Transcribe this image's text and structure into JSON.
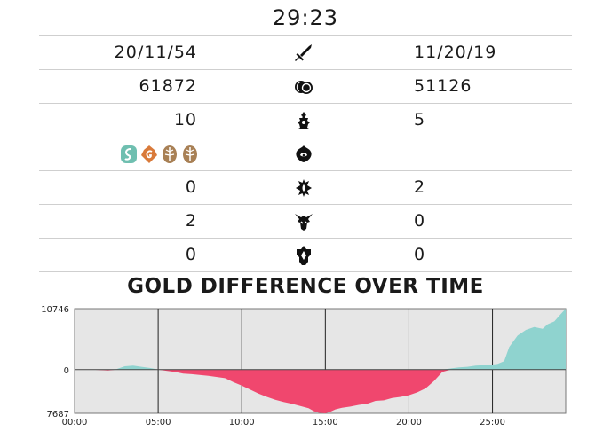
{
  "game_time": "29:23",
  "rows": [
    {
      "left": "20/11/54",
      "right": "11/20/19",
      "icon": "sword-icon"
    },
    {
      "left": "61872",
      "right": "51126",
      "icon": "gold-coins-icon"
    },
    {
      "left": "10",
      "right": "5",
      "icon": "tower-icon"
    },
    {
      "left": "",
      "right": "",
      "icon": "dragon-icon"
    },
    {
      "left": "0",
      "right": "2",
      "icon": "rift-herald-icon"
    },
    {
      "left": "2",
      "right": "0",
      "icon": "baron-icon"
    },
    {
      "left": "0",
      "right": "0",
      "icon": "inhibitor-icon"
    }
  ],
  "dragons_left": [
    {
      "icon": "ocean-dragon-icon",
      "color": "#6fbfb0"
    },
    {
      "icon": "infernal-dragon-icon",
      "color": "#d97a3a"
    },
    {
      "icon": "mountain-dragon-icon",
      "color": "#a88055"
    },
    {
      "icon": "mountain-dragon-icon",
      "color": "#a88055"
    }
  ],
  "colors": {
    "positive": "#8fd3cf",
    "negative": "#f0476e",
    "plot_background": "#e6e6e6"
  },
  "chart_data": {
    "type": "area",
    "title": "GOLD DIFFERENCE OVER TIME",
    "xlabel": "",
    "ylabel": "",
    "x_ticks": [
      "00:00",
      "05:00",
      "10:00",
      "15:00",
      "20:00",
      "25:00"
    ],
    "y_tick_labels": [
      "10746",
      "0",
      "7687"
    ],
    "ylim": [
      -7687,
      10746
    ],
    "xlim_minutes": [
      0,
      29.38
    ],
    "grid": "vertical",
    "x_minutes": [
      0,
      1,
      2,
      2.5,
      3,
      3.5,
      4,
      4.5,
      5,
      5.5,
      6,
      6.5,
      7,
      8,
      9,
      9.5,
      10,
      10.5,
      11,
      11.5,
      12,
      12.5,
      13,
      13.5,
      14,
      14.3,
      14.6,
      15,
      15.3,
      15.6,
      16,
      16.5,
      17,
      17.5,
      18,
      18.5,
      19,
      19.5,
      20,
      20.5,
      21,
      21.5,
      22,
      22.5,
      23,
      23.5,
      24,
      24.5,
      25,
      25.3,
      25.7,
      26,
      26.5,
      27,
      27.5,
      28,
      28.3,
      28.7,
      29,
      29.38
    ],
    "gold_diff": [
      0,
      50,
      -150,
      100,
      600,
      700,
      500,
      300,
      0,
      -200,
      -400,
      -700,
      -800,
      -1100,
      -1500,
      -2200,
      -2800,
      -3500,
      -4200,
      -4800,
      -5300,
      -5700,
      -6000,
      -6400,
      -6800,
      -7300,
      -7600,
      -7687,
      -7400,
      -7000,
      -6700,
      -6500,
      -6200,
      -6000,
      -5500,
      -5400,
      -5000,
      -4800,
      -4500,
      -4000,
      -3300,
      -2000,
      -400,
      200,
      400,
      500,
      700,
      800,
      900,
      1000,
      1500,
      4000,
      6000,
      7000,
      7500,
      7200,
      8000,
      8500,
      9500,
      10746
    ]
  }
}
